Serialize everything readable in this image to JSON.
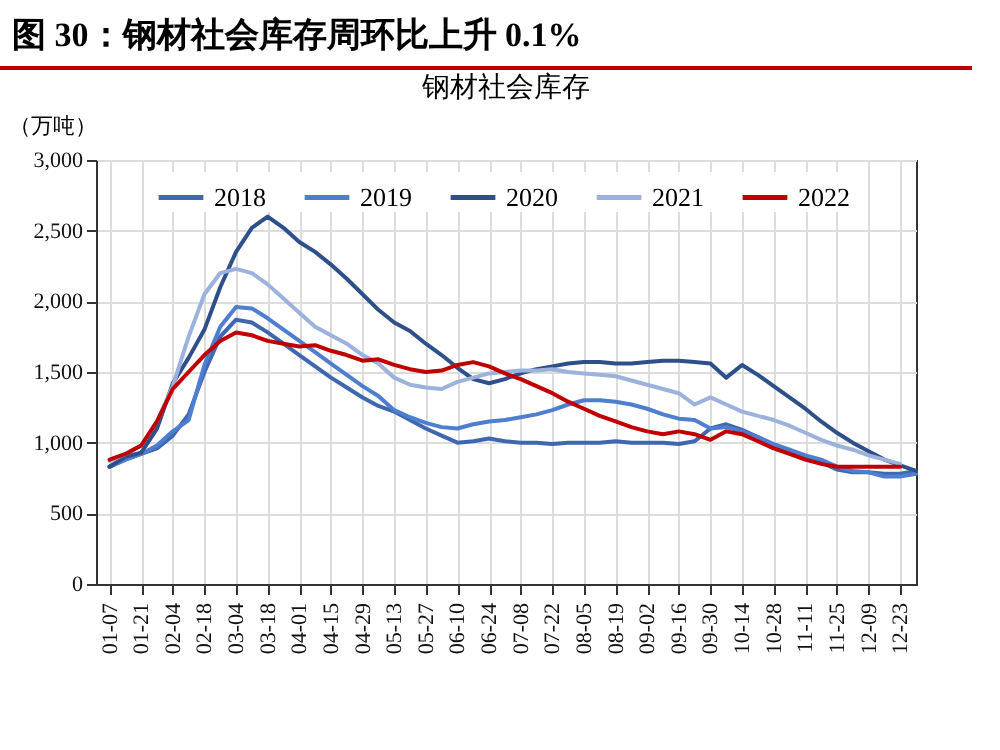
{
  "chart_data": {
    "type": "line",
    "title": "图 30：钢材社会库存周环比上升 0.1%",
    "subtitle": "钢材社会库存",
    "ylabel": "（万吨）",
    "x": [
      "--01-07",
      "--01-14",
      "--01-21",
      "--01-28",
      "--02-04",
      "--02-11",
      "--02-18",
      "--02-25",
      "--03-04",
      "--03-11",
      "--03-18",
      "--03-25",
      "--04-01",
      "--04-08",
      "--04-15",
      "--04-22",
      "--04-29",
      "--05-06",
      "--05-13",
      "--05-20",
      "--05-27",
      "--06-03",
      "--06-10",
      "--06-17",
      "--06-24",
      "--07-01",
      "--07-08",
      "--07-15",
      "--07-22",
      "--07-29",
      "--08-05",
      "--08-12",
      "--08-19",
      "--08-26",
      "--09-02",
      "--09-09",
      "--09-16",
      "--09-23",
      "--09-30",
      "--10-07",
      "--10-14",
      "--10-21",
      "--10-28",
      "--11-04",
      "--11-11",
      "--11-18",
      "--11-25",
      "--12-02",
      "--12-09",
      "--12-16",
      "--12-23",
      "--12-30"
    ],
    "series": [
      {
        "name": "2018",
        "color": "#3f67b0",
        "values": [
          830,
          880,
          920,
          960,
          1050,
          1200,
          1500,
          1750,
          1870,
          1850,
          1780,
          1700,
          1620,
          1540,
          1460,
          1390,
          1320,
          1260,
          1220,
          1160,
          1100,
          1050,
          1000,
          1010,
          1030,
          1010,
          1000,
          1000,
          990,
          1000,
          1000,
          1000,
          1010,
          1000,
          1000,
          1000,
          990,
          1010,
          1100,
          1130,
          1090,
          1040,
          980,
          930,
          900,
          860,
          810,
          790,
          790,
          780,
          780,
          800
        ]
      },
      {
        "name": "2019",
        "color": "#4d7ecf",
        "values": [
          830,
          880,
          920,
          980,
          1080,
          1160,
          1550,
          1820,
          1960,
          1950,
          1880,
          1800,
          1720,
          1640,
          1560,
          1480,
          1400,
          1330,
          1230,
          1180,
          1140,
          1110,
          1100,
          1130,
          1150,
          1160,
          1180,
          1200,
          1230,
          1270,
          1300,
          1300,
          1290,
          1270,
          1240,
          1200,
          1170,
          1160,
          1100,
          1110,
          1080,
          1040,
          990,
          950,
          910,
          880,
          830,
          800,
          790,
          760,
          760,
          780
        ]
      },
      {
        "name": "2020",
        "color": "#2f4f8a",
        "values": [
          830,
          900,
          930,
          1100,
          1420,
          1600,
          1800,
          2100,
          2350,
          2520,
          2600,
          2520,
          2420,
          2350,
          2260,
          2160,
          2050,
          1940,
          1850,
          1790,
          1700,
          1620,
          1530,
          1450,
          1420,
          1450,
          1490,
          1520,
          1540,
          1560,
          1570,
          1570,
          1560,
          1560,
          1570,
          1580,
          1580,
          1570,
          1560,
          1460,
          1550,
          1480,
          1400,
          1320,
          1240,
          1150,
          1070,
          1000,
          940,
          880,
          840,
          800
        ]
      },
      {
        "name": "2021",
        "color": "#9cb2dc",
        "values": [
          870,
          920,
          980,
          1150,
          1400,
          1750,
          2050,
          2200,
          2230,
          2200,
          2120,
          2020,
          1920,
          1820,
          1760,
          1700,
          1620,
          1560,
          1460,
          1410,
          1390,
          1380,
          1430,
          1460,
          1490,
          1500,
          1510,
          1510,
          1520,
          1500,
          1490,
          1480,
          1470,
          1440,
          1410,
          1380,
          1350,
          1270,
          1320,
          1270,
          1220,
          1190,
          1160,
          1120,
          1070,
          1020,
          980,
          950,
          910,
          880,
          850,
          null
        ]
      },
      {
        "name": "2022",
        "color": "#c00000",
        "values": [
          880,
          920,
          980,
          1150,
          1380,
          1500,
          1620,
          1720,
          1780,
          1760,
          1720,
          1700,
          1680,
          1690,
          1650,
          1620,
          1580,
          1590,
          1550,
          1520,
          1500,
          1510,
          1550,
          1570,
          1540,
          1490,
          1450,
          1400,
          1350,
          1290,
          1240,
          1190,
          1150,
          1110,
          1080,
          1060,
          1080,
          1060,
          1020,
          1080,
          1060,
          1010,
          960,
          920,
          880,
          850,
          830,
          830,
          830,
          830,
          830,
          null
        ]
      }
    ],
    "xlim": [
      "--01-01",
      "--12-30"
    ],
    "xticks": [
      {
        "value": "--01-07",
        "label": "01-07"
      },
      {
        "value": "--01-21",
        "label": "01-21"
      },
      {
        "value": "--02-04",
        "label": "02-04"
      },
      {
        "value": "--02-18",
        "label": "02-18"
      },
      {
        "value": "--03-04",
        "label": "03-04"
      },
      {
        "value": "--03-18",
        "label": "03-18"
      },
      {
        "value": "--04-01",
        "label": "04-01"
      },
      {
        "value": "--04-15",
        "label": "04-15"
      },
      {
        "value": "--04-29",
        "label": "04-29"
      },
      {
        "value": "--05-13",
        "label": "05-13"
      },
      {
        "value": "--05-27",
        "label": "05-27"
      },
      {
        "value": "--06-10",
        "label": "06-10"
      },
      {
        "value": "--06-24",
        "label": "06-24"
      },
      {
        "value": "--07-08",
        "label": "07-08"
      },
      {
        "value": "--07-22",
        "label": "07-22"
      },
      {
        "value": "--08-05",
        "label": "08-05"
      },
      {
        "value": "--08-19",
        "label": "08-19"
      },
      {
        "value": "--09-02",
        "label": "09-02"
      },
      {
        "value": "--09-16",
        "label": "09-16"
      },
      {
        "value": "--09-30",
        "label": "09-30"
      },
      {
        "value": "--10-14",
        "label": "10-14"
      },
      {
        "value": "--10-28",
        "label": "10-28"
      },
      {
        "value": "--11-11",
        "label": "11-11"
      },
      {
        "value": "--11-25",
        "label": "11-25"
      },
      {
        "value": "--12-09",
        "label": "12-09"
      },
      {
        "value": "--12-23",
        "label": "12-23"
      }
    ],
    "ylim": [
      0,
      3000
    ],
    "yticks": [
      0,
      500,
      {
        "value": 1000,
        "label": "1,000"
      },
      {
        "value": 1500,
        "label": "1,500"
      },
      {
        "value": 2000,
        "label": "2,000"
      },
      {
        "value": 2500,
        "label": "2,500"
      },
      {
        "value": 3000,
        "label": "3,000"
      }
    ],
    "grid": true,
    "legend": "top",
    "marker": "none",
    "line_style": "solid"
  }
}
